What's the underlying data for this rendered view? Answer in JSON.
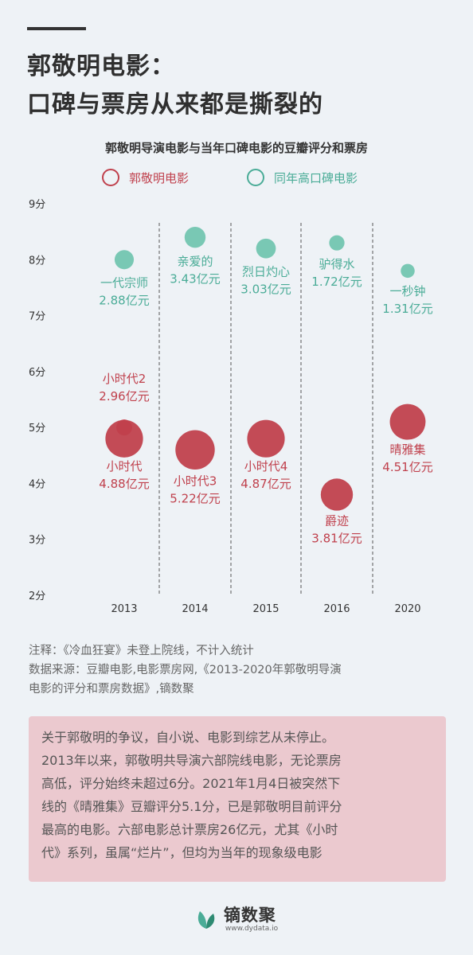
{
  "header": {
    "title_line1": "郭敬明电影：",
    "title_line2": "口碑与票房从来都是撕裂的"
  },
  "colors": {
    "guo": "#c0414d",
    "peer": "#6cc3ad",
    "peer_text": "#4aac97",
    "background": "#eef2f6",
    "note_box": "#ebc9cf"
  },
  "chart_data": {
    "type": "scatter",
    "title": "郭敬明导演电影与当年口碑电影的豆瓣评分和票房",
    "legend": [
      "郭敬明电影",
      "同年高口碑电影"
    ],
    "y_ticks": [
      "9分",
      "8分",
      "7分",
      "6分",
      "5分",
      "4分",
      "3分",
      "2分"
    ],
    "ylim": [
      2,
      9
    ],
    "categories": [
      "2013",
      "2014",
      "2015",
      "2016",
      "2020"
    ],
    "series": [
      {
        "name": "郭敬明电影",
        "points": [
          {
            "year": "2013",
            "title": "小时代2",
            "score": 5.0,
            "boxoffice": 2.96,
            "box_label": "2.96亿元"
          },
          {
            "year": "2013",
            "title": "小时代",
            "score": 4.8,
            "boxoffice": 4.88,
            "box_label": "4.88亿元"
          },
          {
            "year": "2014",
            "title": "小时代3",
            "score": 4.6,
            "boxoffice": 5.22,
            "box_label": "5.22亿元"
          },
          {
            "year": "2015",
            "title": "小时代4",
            "score": 4.8,
            "boxoffice": 4.87,
            "box_label": "4.87亿元"
          },
          {
            "year": "2016",
            "title": "爵迹",
            "score": 3.8,
            "boxoffice": 3.81,
            "box_label": "3.81亿元"
          },
          {
            "year": "2020",
            "title": "晴雅集",
            "score": 5.1,
            "boxoffice": 4.51,
            "box_label": "4.51亿元"
          }
        ]
      },
      {
        "name": "同年高口碑电影",
        "points": [
          {
            "year": "2013",
            "title": "一代宗师",
            "score": 8.0,
            "boxoffice": 2.88,
            "box_label": "2.88亿元"
          },
          {
            "year": "2014",
            "title": "亲爱的",
            "score": 8.4,
            "boxoffice": 3.43,
            "box_label": "3.43亿元"
          },
          {
            "year": "2015",
            "title": "烈日灼心",
            "score": 8.2,
            "boxoffice": 3.03,
            "box_label": "3.03亿元"
          },
          {
            "year": "2016",
            "title": "驴得水",
            "score": 8.3,
            "boxoffice": 1.72,
            "box_label": "1.72亿元"
          },
          {
            "year": "2020",
            "title": "一秒钟",
            "score": 7.8,
            "boxoffice": 1.31,
            "box_label": "1.31亿元"
          }
        ]
      }
    ]
  },
  "notes": {
    "line1": "注释：《冷血狂宴》未登上院线，不计入统计",
    "line2": "数据来源：豆瓣电影,电影票房网,《2013-2020年郭敬明导演",
    "line3": "电影的评分和票房数据》,镝数聚"
  },
  "summary": {
    "lines": [
      "关于郭敬明的争议，自小说、电影到综艺从未停止。",
      "2013年以来，郭敬明共导演六部院线电影，无论票房",
      "高低，评分始终未超过6分。2021年1月4日被突然下",
      "线的《晴雅集》豆瓣评分5.1分，已是郭敬明目前评分",
      "最高的电影。六部电影总计票房26亿元，尤其《小时",
      "代》系列，虽属“烂片”，但均为当年的现象级电影"
    ]
  },
  "footer": {
    "brand": "镝数聚",
    "url": "www.dydata.io"
  }
}
